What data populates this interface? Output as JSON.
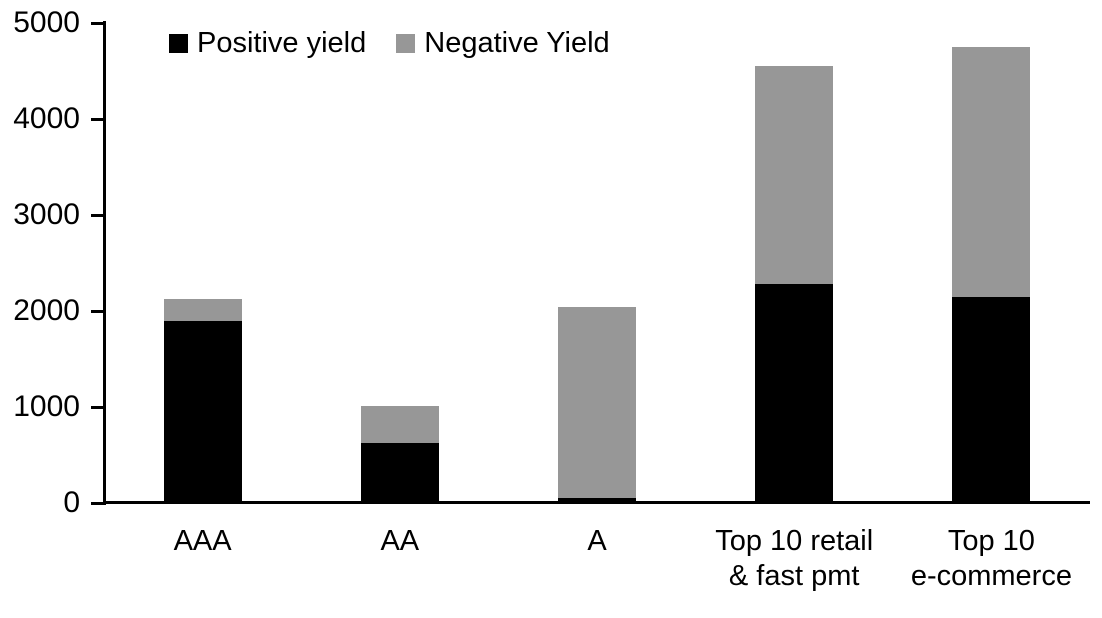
{
  "chart_data": {
    "type": "bar",
    "stacked": true,
    "title": "",
    "xlabel": "",
    "ylabel": "",
    "categories": [
      "AAA",
      "AA",
      "A",
      "Top 10 retail & fast pmt",
      "Top 10 e-commerce"
    ],
    "category_lines": [
      [
        "AAA"
      ],
      [
        "AA"
      ],
      [
        "A"
      ],
      [
        "Top 10 retail",
        "& fast pmt"
      ],
      [
        "Top 10",
        "e-commerce"
      ]
    ],
    "series": [
      {
        "name": "Positive yield",
        "color": "#000000",
        "values": [
          1900,
          620,
          50,
          2280,
          2150
        ]
      },
      {
        "name": "Negative Yield",
        "color": "#979797",
        "values": [
          220,
          390,
          1990,
          2270,
          2600
        ]
      }
    ],
    "totals": [
      2120,
      1010,
      2040,
      4550,
      4750
    ],
    "ylim": [
      0,
      5000
    ],
    "yticks": [
      0,
      1000,
      2000,
      3000,
      4000,
      5000
    ],
    "grid": false,
    "legend_position": "top",
    "axis_color": "#000000",
    "background_color": "#ffffff"
  }
}
